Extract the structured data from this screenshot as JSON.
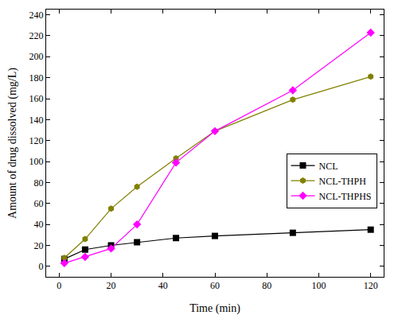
{
  "chart_data": {
    "type": "line",
    "x_label": "Time (min)",
    "y_label": "Amount of drug dissolved (mg/L)",
    "x": [
      2,
      10,
      20,
      30,
      45,
      60,
      90,
      120
    ],
    "series": [
      {
        "name": "NCL",
        "color": "#000000",
        "marker": "square",
        "values": [
          7,
          16,
          20,
          23,
          27,
          29,
          32,
          35
        ]
      },
      {
        "name": "NCL-THPH",
        "color": "#808000",
        "marker": "hexagon",
        "values": [
          8,
          26,
          55,
          76,
          103,
          129,
          159,
          181
        ]
      },
      {
        "name": "NCL-THPHS",
        "color": "#ff00ff",
        "marker": "diamond",
        "values": [
          3,
          9,
          17,
          40,
          99,
          129,
          168,
          223
        ]
      }
    ],
    "xlim": [
      -5,
      125
    ],
    "xticks": [
      0,
      20,
      40,
      60,
      80,
      100,
      120
    ],
    "ylim": [
      -10,
      245
    ],
    "yticks": [
      0,
      20,
      40,
      60,
      80,
      100,
      120,
      140,
      160,
      180,
      200,
      220,
      240
    ],
    "grid": false,
    "legend": "right"
  }
}
